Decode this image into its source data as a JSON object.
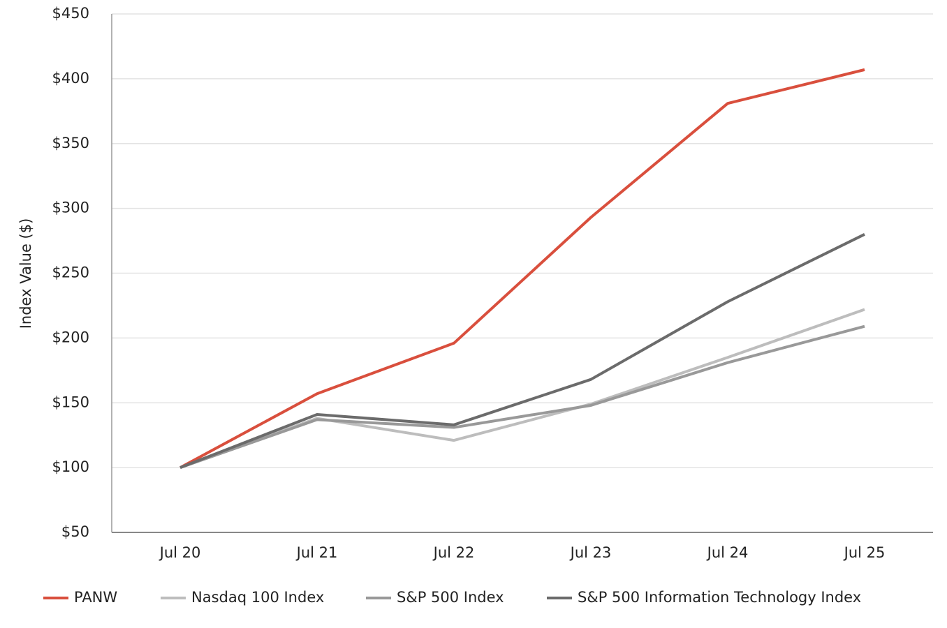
{
  "chart_data": {
    "type": "line",
    "y_label": "Index Value ($)",
    "categories": [
      "Jul 20",
      "Jul 21",
      "Jul 22",
      "Jul 23",
      "Jul 24",
      "Jul 25"
    ],
    "series": [
      {
        "name": "PANW",
        "color": "#d94f3d",
        "values": [
          100,
          157,
          196,
          293,
          381,
          407
        ]
      },
      {
        "name": "Nasdaq 100 Index",
        "color": "#bdbdbd",
        "values": [
          100,
          138,
          121,
          149,
          185,
          222
        ]
      },
      {
        "name": "S&P 500 Index",
        "color": "#999999",
        "values": [
          100,
          137,
          131,
          148,
          181,
          209
        ]
      },
      {
        "name": "S&P 500 Information Technology Index",
        "color": "#6b6b6b",
        "values": [
          100,
          141,
          133,
          168,
          228,
          280
        ]
      }
    ],
    "ylim": [
      50,
      450
    ],
    "yticks": [
      {
        "value": 50,
        "label": "$50"
      },
      {
        "value": 100,
        "label": "$100"
      },
      {
        "value": 150,
        "label": "$150"
      },
      {
        "value": 200,
        "label": "$200"
      },
      {
        "value": 250,
        "label": "$250"
      },
      {
        "value": 300,
        "label": "$300"
      },
      {
        "value": 350,
        "label": "$350"
      },
      {
        "value": 400,
        "label": "$400"
      },
      {
        "value": 450,
        "label": "$450"
      }
    ],
    "grid": true,
    "legend": "bottom"
  }
}
